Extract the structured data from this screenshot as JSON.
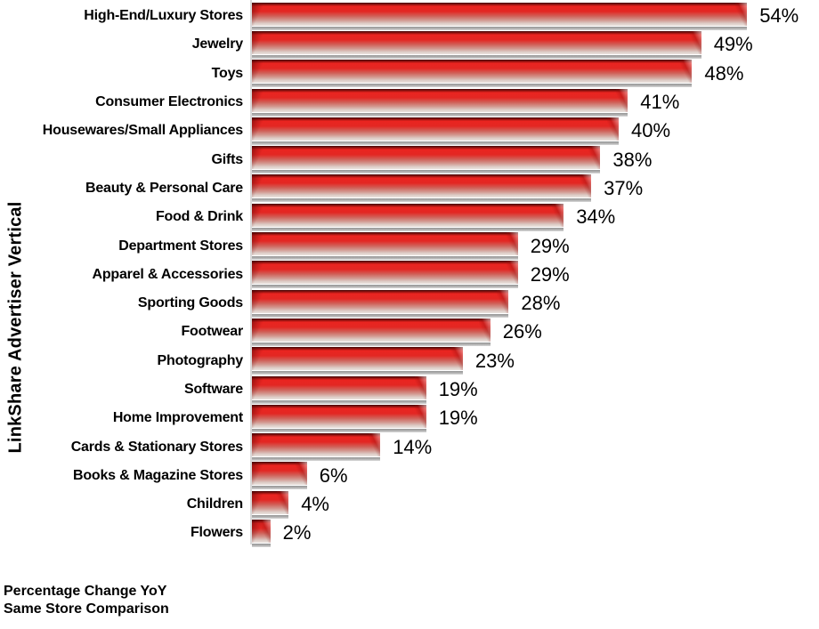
{
  "chart_data": {
    "type": "bar",
    "orientation": "horizontal",
    "title": "",
    "ylabel": "LinkShare Advertiser Vertical",
    "xlabel": "",
    "categories": [
      "High-End/Luxury Stores",
      "Jewelry",
      "Toys",
      "Consumer Electronics",
      "Housewares/Small Appliances",
      "Gifts",
      "Beauty & Personal Care",
      "Food & Drink",
      "Department Stores",
      "Apparel & Accessories",
      "Sporting Goods",
      "Footwear",
      "Photography",
      "Software",
      "Home Improvement",
      "Cards & Stationary Stores",
      "Books & Magazine Stores",
      "Children",
      "Flowers"
    ],
    "values": [
      54,
      49,
      48,
      41,
      40,
      38,
      37,
      34,
      29,
      29,
      28,
      26,
      23,
      19,
      19,
      14,
      6,
      4,
      2
    ],
    "value_suffix": "%",
    "xlim": [
      0,
      56
    ],
    "grid": false,
    "legend": false,
    "colors": {
      "bar_main": "#e32723",
      "bar_top_edge": "#3f0606",
      "bar_fade_bottom": "#eae3df",
      "bar_shadow": "#ababab",
      "axis_line": "#d9d9d9",
      "text": "#000000",
      "background": "#ffffff"
    },
    "caption": [
      "Percentage Change YoY",
      "Same Store Comparison"
    ]
  }
}
